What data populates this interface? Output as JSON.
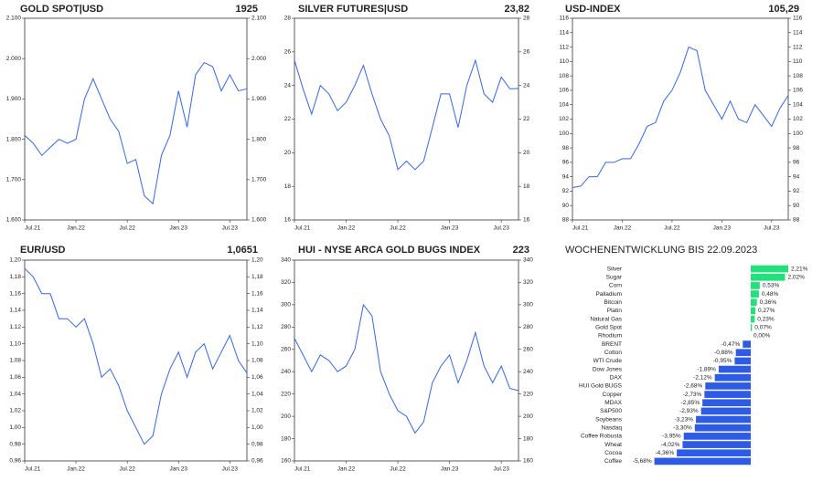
{
  "chart_data": [
    {
      "type": "line",
      "title": "GOLD SPOT|USD",
      "latest": "1925",
      "categories": [
        "Jul.21",
        null,
        null,
        null,
        null,
        null,
        "Jan.22",
        null,
        null,
        null,
        null,
        null,
        "Jul.22",
        null,
        null,
        null,
        null,
        null,
        "Jan.23",
        null,
        null,
        null,
        null,
        null,
        "Jul.23",
        null,
        null
      ],
      "series": [
        {
          "color": "#3366ee",
          "values": [
            1810,
            1790,
            1760,
            1780,
            1800,
            1790,
            1800,
            1900,
            1950,
            1900,
            1850,
            1820,
            1740,
            1750,
            1660,
            1640,
            1760,
            1810,
            1920,
            1830,
            1960,
            1990,
            1980,
            1920,
            1960,
            1920,
            1925
          ]
        }
      ],
      "ylim": [
        1600,
        2100
      ],
      "yticks": [
        {
          "value": 1600,
          "label": "1.600"
        },
        {
          "value": 1700,
          "label": "1.700"
        },
        {
          "value": 1800,
          "label": "1.800"
        },
        {
          "value": 1900,
          "label": "1.900"
        },
        {
          "value": 2000,
          "label": "2.000"
        },
        {
          "value": 2100,
          "label": "2.100"
        }
      ]
    },
    {
      "type": "line",
      "title": "SILVER FUTURES|USD",
      "latest": "23,82",
      "categories": [
        "Jul.21",
        null,
        null,
        null,
        null,
        null,
        "Jan.22",
        null,
        null,
        null,
        null,
        null,
        "Jul.22",
        null,
        null,
        null,
        null,
        null,
        "Jan.23",
        null,
        null,
        null,
        null,
        null,
        "Jul.23",
        null,
        null
      ],
      "series": [
        {
          "color": "#3366ee",
          "values": [
            25.5,
            23.8,
            22.3,
            24,
            23.5,
            22.5,
            23,
            24,
            25.2,
            23.5,
            22,
            21,
            19,
            19.5,
            19,
            19.5,
            21.5,
            23.5,
            23.5,
            21.5,
            24,
            25.5,
            23.5,
            23,
            24.5,
            23.8,
            23.82
          ]
        }
      ],
      "ylim": [
        16,
        28
      ],
      "yticks": [
        16,
        18,
        20,
        22,
        24,
        26,
        28
      ]
    },
    {
      "type": "line",
      "title": "USD-INDEX",
      "latest": "105,29",
      "categories": [
        "Jul.21",
        null,
        null,
        null,
        null,
        null,
        "Jan.22",
        null,
        null,
        null,
        null,
        null,
        "Jul.22",
        null,
        null,
        null,
        null,
        null,
        "Jan.23",
        null,
        null,
        null,
        null,
        null,
        "Jul.23",
        null,
        null
      ],
      "series": [
        {
          "color": "#3366ee",
          "values": [
            92.5,
            92.7,
            94,
            94,
            96,
            96,
            96.5,
            96.5,
            98.5,
            101,
            101.5,
            104.5,
            106,
            108.5,
            112,
            111.5,
            106,
            104,
            102,
            104.5,
            102,
            101.5,
            104,
            102.5,
            101,
            103.5,
            105.29
          ]
        }
      ],
      "ylim": [
        88,
        116
      ],
      "yticks": [
        88,
        90,
        92,
        94,
        96,
        98,
        100,
        102,
        104,
        106,
        108,
        110,
        112,
        114,
        116
      ]
    },
    {
      "type": "line",
      "title": "EUR/USD",
      "latest": "1,0651",
      "categories": [
        "Jul.21",
        null,
        null,
        null,
        null,
        null,
        "Jan.22",
        null,
        null,
        null,
        null,
        null,
        "Jul.22",
        null,
        null,
        null,
        null,
        null,
        "Jan.23",
        null,
        null,
        null,
        null,
        null,
        "Jul.23",
        null,
        null
      ],
      "series": [
        {
          "color": "#3366ee",
          "values": [
            1.19,
            1.18,
            1.16,
            1.16,
            1.13,
            1.13,
            1.12,
            1.13,
            1.1,
            1.06,
            1.07,
            1.05,
            1.02,
            1.0,
            0.98,
            0.99,
            1.04,
            1.07,
            1.09,
            1.06,
            1.09,
            1.1,
            1.07,
            1.09,
            1.11,
            1.08,
            1.0651
          ]
        }
      ],
      "ylim": [
        0.96,
        1.2
      ],
      "yticks": [
        {
          "value": 0.96,
          "label": "0,96"
        },
        {
          "value": 0.98,
          "label": "0,98"
        },
        {
          "value": 1.0,
          "label": "1,00"
        },
        {
          "value": 1.02,
          "label": "1,02"
        },
        {
          "value": 1.04,
          "label": "1,04"
        },
        {
          "value": 1.06,
          "label": "1,06"
        },
        {
          "value": 1.08,
          "label": "1,08"
        },
        {
          "value": 1.1,
          "label": "1,10"
        },
        {
          "value": 1.12,
          "label": "1,12"
        },
        {
          "value": 1.14,
          "label": "1,14"
        },
        {
          "value": 1.16,
          "label": "1,16"
        },
        {
          "value": 1.18,
          "label": "1,18"
        },
        {
          "value": 1.2,
          "label": "1,20"
        }
      ]
    },
    {
      "type": "line",
      "title": "HUI - NYSE ARCA GOLD BUGS INDEX",
      "latest": "223",
      "categories": [
        "Jul.21",
        null,
        null,
        null,
        null,
        null,
        "Jan.22",
        null,
        null,
        null,
        null,
        null,
        "Jul.22",
        null,
        null,
        null,
        null,
        null,
        "Jan.23",
        null,
        null,
        null,
        null,
        null,
        "Jul.23",
        null,
        null
      ],
      "series": [
        {
          "color": "#3366ee",
          "values": [
            270,
            255,
            240,
            255,
            250,
            240,
            245,
            260,
            300,
            290,
            240,
            220,
            205,
            200,
            185,
            195,
            230,
            245,
            255,
            230,
            250,
            275,
            245,
            230,
            245,
            225,
            223
          ]
        }
      ],
      "ylim": [
        160,
        340
      ],
      "yticks": [
        160,
        180,
        200,
        220,
        240,
        260,
        280,
        300,
        320,
        340
      ]
    },
    {
      "type": "hbar",
      "title": "WOCHENENTWICKLUNG BIS 22.09.2023",
      "color_positive": "#22e07a",
      "color_negative": "#2d5be6",
      "categories": [
        "Silver",
        "Sugar",
        "Corn",
        "Palladium",
        "Bitcoin",
        "Platin",
        "Natural Gas",
        "Gold Spot",
        "Rhodium",
        "BRENT",
        "Cotton",
        "WTI Crude",
        "Dow Jones",
        "DAX",
        "HUI Gold BUGS",
        "Copper",
        "MDAX",
        "S&P500",
        "Soybeans",
        "Nasdaq",
        "Coffee Robusta",
        "Wheat",
        "Cocoa",
        "Coffee"
      ],
      "values": [
        2.21,
        2.02,
        0.53,
        0.48,
        0.36,
        0.27,
        0.23,
        0.07,
        0,
        -0.47,
        -0.88,
        -0.95,
        -1.89,
        -2.12,
        -2.68,
        -2.73,
        -2.85,
        -2.93,
        -3.23,
        -3.3,
        -3.95,
        -4.02,
        -4.36,
        -5.68
      ],
      "value_labels": [
        "2,21%",
        "2,02%",
        "0,53%",
        "0,48%",
        "0,36%",
        "0,27%",
        "0,23%",
        "0,07%",
        "0,00%",
        "-0,47%",
        "-0,88%",
        "-0,95%",
        "-1,89%",
        "-2,12%",
        "-2,68%",
        "-2,73%",
        "-2,85%",
        "-2,93%",
        "-3,23%",
        "-3,30%",
        "-3,95%",
        "-4,02%",
        "-4,36%",
        "-5,68%"
      ]
    }
  ]
}
